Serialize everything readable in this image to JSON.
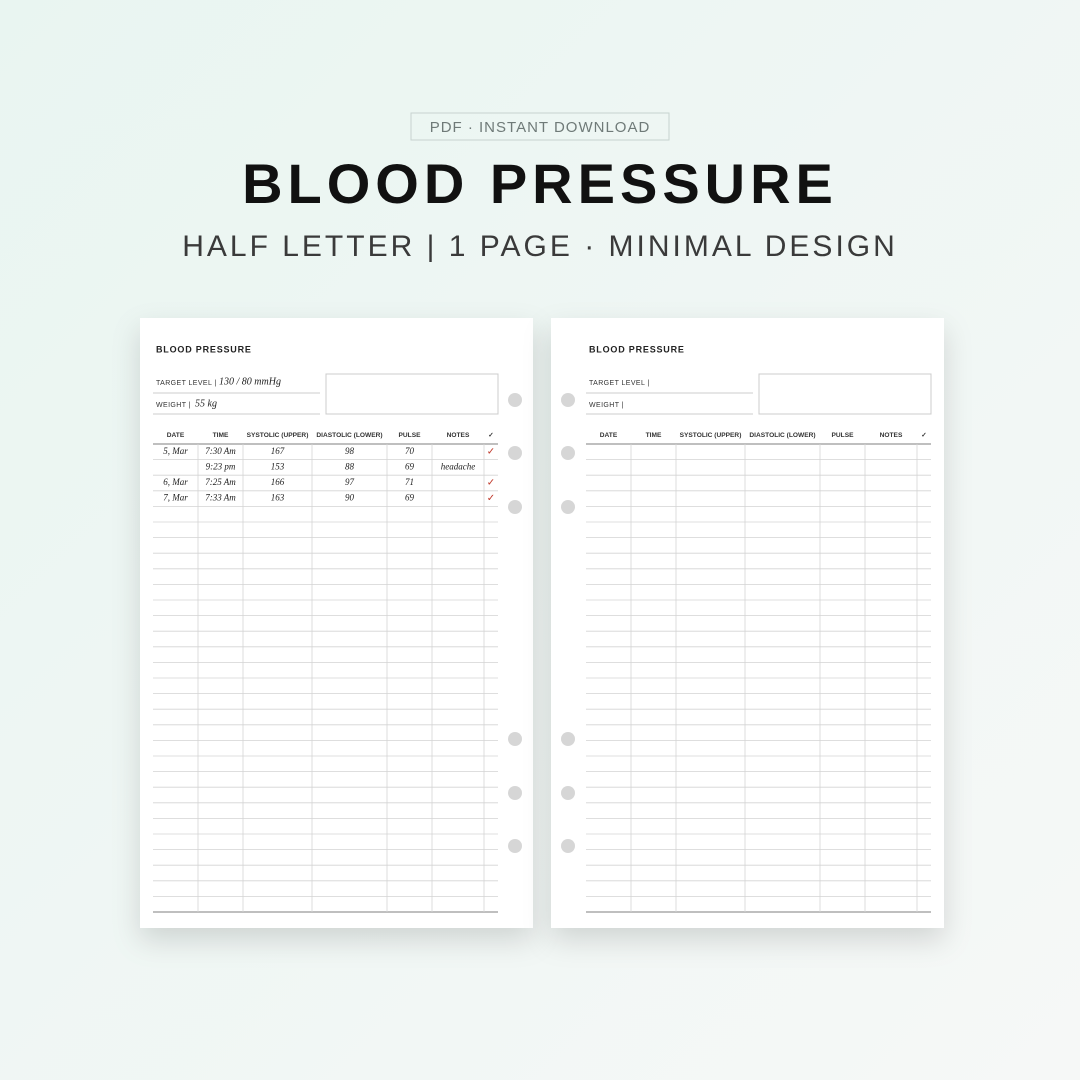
{
  "badge": "PDF · INSTANT DOWNLOAD",
  "title": "BLOOD PRESSURE",
  "subtitle": "HALF LETTER | 1 PAGE · MINIMAL DESIGN",
  "pages": [
    {
      "title": "BLOOD PRESSURE",
      "target_label": "TARGET LEVEL |",
      "target_value": "130 / 80 mmHg",
      "weight_label": "WEIGHT |",
      "weight_value": "55 kg",
      "columns": [
        "DATE",
        "TIME",
        "SYSTOLIC (UPPER)",
        "DIASTOLIC (LOWER)",
        "PULSE",
        "NOTES",
        "✓"
      ],
      "rows": [
        [
          "5, Mar",
          "7:30 Am",
          167,
          98,
          70,
          null,
          "✓"
        ],
        [
          null,
          "9:23 pm",
          153,
          88,
          69,
          "headache",
          null
        ],
        [
          "6, Mar",
          "7:25 Am",
          166,
          97,
          71,
          null,
          "✓"
        ],
        [
          "7, Mar",
          "7:33 Am",
          163,
          90,
          69,
          null,
          "✓"
        ]
      ]
    },
    {
      "title": "BLOOD PRESSURE",
      "target_label": "TARGET LEVEL |",
      "weight_label": "WEIGHT |",
      "columns": [
        "DATE",
        "TIME",
        "SYSTOLIC (UPPER)",
        "DIASTOLIC (LOWER)",
        "PULSE",
        "NOTES",
        "✓"
      ]
    }
  ]
}
